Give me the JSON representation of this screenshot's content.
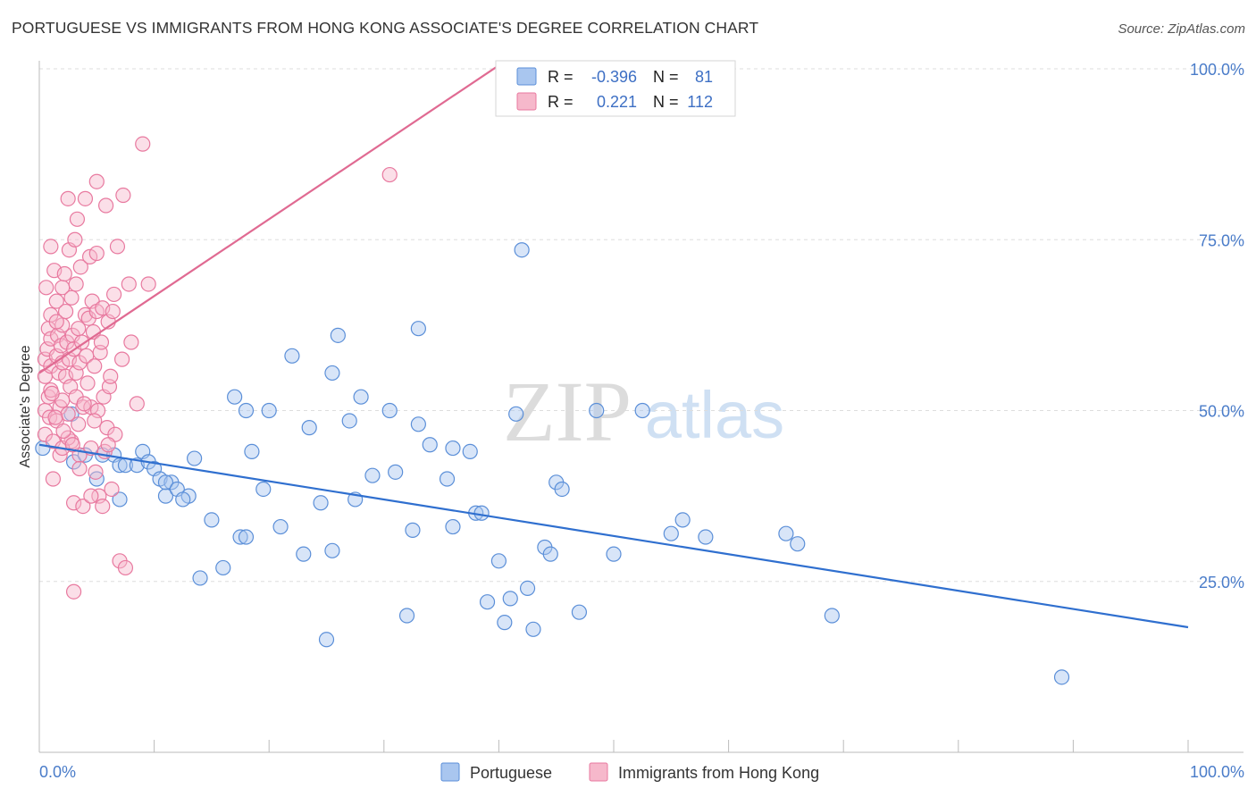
{
  "title": "PORTUGUESE VS IMMIGRANTS FROM HONG KONG ASSOCIATE'S DEGREE CORRELATION CHART",
  "source": "Source: ZipAtlas.com",
  "watermark": {
    "zip": "ZIP",
    "atlas": "atlas"
  },
  "legend": {
    "rows": [
      {
        "r_label": "R =",
        "r_value": "-0.396",
        "n_label": "N =",
        "n_value": "81",
        "color": "#a9c6ef",
        "stroke": "#5b8fd8"
      },
      {
        "r_label": "R =",
        "r_value": "0.221",
        "n_label": "N =",
        "n_value": "112",
        "color": "#f6b8cb",
        "stroke": "#e8799f"
      }
    ]
  },
  "bottom_legend": [
    {
      "label": "Portuguese",
      "color": "#a9c6ef",
      "stroke": "#5b8fd8"
    },
    {
      "label": "Immigrants from Hong Kong",
      "color": "#f6b8cb",
      "stroke": "#e8799f"
    }
  ],
  "chart_data": {
    "type": "scatter",
    "title": "PORTUGUESE VS IMMIGRANTS FROM HONG KONG ASSOCIATE'S DEGREE CORRELATION CHART",
    "xlabel": "",
    "ylabel": "Associate's Degree",
    "xlim": [
      0,
      100
    ],
    "ylim": [
      0,
      100
    ],
    "x_tick_labels": [
      "0.0%",
      "100.0%"
    ],
    "y_tick_labels": [
      "25.0%",
      "50.0%",
      "75.0%",
      "100.0%"
    ],
    "y_tick_values": [
      25,
      50,
      75,
      100
    ],
    "grid": true,
    "series": [
      {
        "name": "Portuguese",
        "color": "#5b8fd8",
        "fill": "#a9c6ef",
        "trend": {
          "x": [
            0,
            100
          ],
          "y": [
            45.0,
            18.3
          ],
          "color": "#2f6fcf"
        },
        "points": [
          [
            0.3,
            44.5
          ],
          [
            2.8,
            49.5
          ],
          [
            3.0,
            42.5
          ],
          [
            4.0,
            43.5
          ],
          [
            5.0,
            40.0
          ],
          [
            5.5,
            43.5
          ],
          [
            6.5,
            43.5
          ],
          [
            7.0,
            42.0
          ],
          [
            7.5,
            42.0
          ],
          [
            8.5,
            42.0
          ],
          [
            7.0,
            37.0
          ],
          [
            9.0,
            44.0
          ],
          [
            9.5,
            42.5
          ],
          [
            10.0,
            41.5
          ],
          [
            10.5,
            40.0
          ],
          [
            11.0,
            37.5
          ],
          [
            11.5,
            39.5
          ],
          [
            11.0,
            39.5
          ],
          [
            12.0,
            38.5
          ],
          [
            13.0,
            37.5
          ],
          [
            13.5,
            43.0
          ],
          [
            14.0,
            25.5
          ],
          [
            12.5,
            37.0
          ],
          [
            15.0,
            34.0
          ],
          [
            16.0,
            27.0
          ],
          [
            17.5,
            31.5
          ],
          [
            18.0,
            31.5
          ],
          [
            18.5,
            44.0
          ],
          [
            17.0,
            52.0
          ],
          [
            18.0,
            50.0
          ],
          [
            19.5,
            38.5
          ],
          [
            20.0,
            50.0
          ],
          [
            21.0,
            33.0
          ],
          [
            22.0,
            58.0
          ],
          [
            23.0,
            29.0
          ],
          [
            23.5,
            47.5
          ],
          [
            24.5,
            36.5
          ],
          [
            25.5,
            29.5
          ],
          [
            25.5,
            55.5
          ],
          [
            26.0,
            61.0
          ],
          [
            27.0,
            48.5
          ],
          [
            27.5,
            37.0
          ],
          [
            28.0,
            52.0
          ],
          [
            29.0,
            40.5
          ],
          [
            30.5,
            50.0
          ],
          [
            31.0,
            41.0
          ],
          [
            32.0,
            20.0
          ],
          [
            32.5,
            32.5
          ],
          [
            33.0,
            62.0
          ],
          [
            33.0,
            48.0
          ],
          [
            34.0,
            45.0
          ],
          [
            35.5,
            40.0
          ],
          [
            36.0,
            33.0
          ],
          [
            36.0,
            44.5
          ],
          [
            37.5,
            44.0
          ],
          [
            38.0,
            35.0
          ],
          [
            38.5,
            35.0
          ],
          [
            39.0,
            22.0
          ],
          [
            40.0,
            28.0
          ],
          [
            40.5,
            19.0
          ],
          [
            41.0,
            22.5
          ],
          [
            42.5,
            24.0
          ],
          [
            43.0,
            18.0
          ],
          [
            41.5,
            49.5
          ],
          [
            44.0,
            30.0
          ],
          [
            44.5,
            29.0
          ],
          [
            45.0,
            39.5
          ],
          [
            45.5,
            38.5
          ],
          [
            47.0,
            20.5
          ],
          [
            48.5,
            50.0
          ],
          [
            50.0,
            29.0
          ],
          [
            52.5,
            50.0
          ],
          [
            55.0,
            32.0
          ],
          [
            56.0,
            34.0
          ],
          [
            58.0,
            31.5
          ],
          [
            65.0,
            32.0
          ],
          [
            66.0,
            30.5
          ],
          [
            69.0,
            20.0
          ],
          [
            42.0,
            73.5
          ],
          [
            25.0,
            16.5
          ],
          [
            89.0,
            11.0
          ]
        ]
      },
      {
        "name": "Immigrants from Hong Kong",
        "color": "#e8799f",
        "fill": "#f6b8cb",
        "trend": {
          "x": [
            0,
            40
          ],
          "y": [
            55.5,
            100.5
          ],
          "color": "#e06a92"
        },
        "points": [
          [
            0.5,
            57.5
          ],
          [
            0.5,
            55.0
          ],
          [
            0.5,
            50.0
          ],
          [
            0.5,
            46.5
          ],
          [
            0.6,
            68.0
          ],
          [
            0.7,
            59.0
          ],
          [
            0.8,
            62.0
          ],
          [
            0.8,
            52.0
          ],
          [
            0.9,
            49.0
          ],
          [
            1.0,
            74.0
          ],
          [
            1.0,
            64.0
          ],
          [
            1.0,
            60.5
          ],
          [
            1.0,
            56.5
          ],
          [
            1.0,
            53.0
          ],
          [
            1.2,
            45.5
          ],
          [
            1.2,
            40.0
          ],
          [
            1.3,
            70.5
          ],
          [
            1.5,
            58.0
          ],
          [
            1.5,
            66.0
          ],
          [
            1.5,
            48.5
          ],
          [
            1.6,
            61.0
          ],
          [
            1.7,
            55.5
          ],
          [
            1.8,
            50.5
          ],
          [
            1.8,
            43.5
          ],
          [
            1.9,
            59.5
          ],
          [
            2.0,
            62.5
          ],
          [
            2.0,
            57.0
          ],
          [
            2.0,
            51.5
          ],
          [
            2.0,
            68.0
          ],
          [
            2.2,
            70.0
          ],
          [
            2.3,
            64.5
          ],
          [
            2.3,
            55.0
          ],
          [
            2.4,
            60.0
          ],
          [
            2.5,
            49.5
          ],
          [
            2.5,
            81.0
          ],
          [
            2.6,
            73.5
          ],
          [
            2.6,
            57.5
          ],
          [
            2.7,
            53.5
          ],
          [
            2.8,
            66.5
          ],
          [
            2.8,
            45.5
          ],
          [
            2.9,
            61.0
          ],
          [
            3.0,
            59.0
          ],
          [
            3.0,
            36.5
          ],
          [
            3.0,
            23.5
          ],
          [
            3.1,
            75.0
          ],
          [
            3.2,
            68.5
          ],
          [
            3.2,
            55.5
          ],
          [
            3.2,
            52.0
          ],
          [
            3.3,
            78.0
          ],
          [
            3.4,
            48.0
          ],
          [
            3.4,
            62.0
          ],
          [
            3.5,
            57.0
          ],
          [
            3.5,
            43.5
          ],
          [
            3.6,
            71.0
          ],
          [
            3.7,
            60.0
          ],
          [
            3.8,
            50.5
          ],
          [
            3.8,
            36.0
          ],
          [
            4.0,
            81.0
          ],
          [
            4.0,
            64.0
          ],
          [
            4.1,
            58.0
          ],
          [
            4.2,
            54.0
          ],
          [
            4.3,
            63.5
          ],
          [
            4.4,
            72.5
          ],
          [
            4.5,
            50.5
          ],
          [
            4.5,
            44.5
          ],
          [
            4.6,
            66.0
          ],
          [
            4.7,
            61.5
          ],
          [
            4.8,
            56.5
          ],
          [
            4.9,
            41.0
          ],
          [
            5.0,
            83.5
          ],
          [
            5.0,
            73.0
          ],
          [
            5.0,
            64.5
          ],
          [
            5.1,
            50.0
          ],
          [
            5.2,
            37.5
          ],
          [
            5.3,
            58.5
          ],
          [
            5.4,
            60.0
          ],
          [
            5.5,
            65.0
          ],
          [
            5.6,
            52.0
          ],
          [
            5.7,
            44.0
          ],
          [
            5.8,
            80.0
          ],
          [
            5.9,
            47.5
          ],
          [
            6.0,
            63.0
          ],
          [
            6.1,
            53.5
          ],
          [
            6.2,
            55.0
          ],
          [
            6.3,
            38.5
          ],
          [
            6.4,
            64.5
          ],
          [
            6.5,
            67.0
          ],
          [
            6.6,
            46.5
          ],
          [
            6.8,
            74.0
          ],
          [
            7.0,
            28.0
          ],
          [
            7.2,
            57.5
          ],
          [
            7.3,
            81.5
          ],
          [
            7.5,
            27.0
          ],
          [
            7.8,
            68.5
          ],
          [
            8.0,
            60.0
          ],
          [
            8.5,
            51.0
          ],
          [
            9.0,
            89.0
          ],
          [
            9.5,
            68.5
          ],
          [
            30.5,
            84.5
          ],
          [
            2.0,
            44.5
          ],
          [
            1.5,
            63.0
          ],
          [
            2.5,
            46.0
          ],
          [
            3.5,
            41.5
          ],
          [
            4.5,
            37.5
          ],
          [
            1.1,
            52.5
          ],
          [
            1.4,
            49.0
          ],
          [
            2.1,
            47.0
          ],
          [
            2.9,
            45.0
          ],
          [
            3.9,
            51.0
          ],
          [
            4.8,
            48.5
          ],
          [
            5.5,
            36.0
          ],
          [
            6.0,
            45.0
          ]
        ]
      }
    ]
  }
}
